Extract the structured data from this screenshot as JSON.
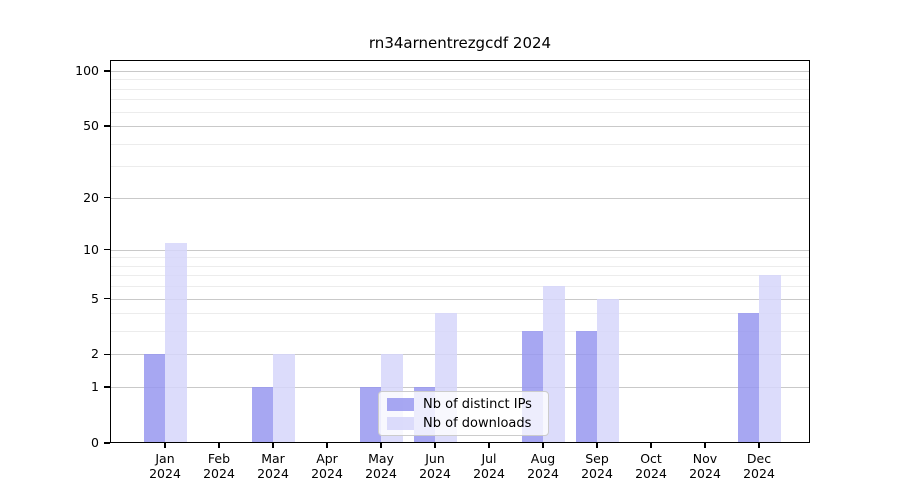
{
  "title": "rn34arnentrezgcdf 2024",
  "legend": {
    "items": [
      {
        "label": "Nb of distinct IPs",
        "color": "rgba(152,152,240,0.85)"
      },
      {
        "label": "Nb of downloads",
        "color": "rgba(214,214,250,0.85)"
      }
    ],
    "position": "lower-center-right"
  },
  "colors": {
    "distinct_ips_bar": "#a7a7f2",
    "downloads_bar": "#dbdbfa",
    "major_gridline": "#c9c9c9",
    "minor_gridline": "#ececec",
    "axis": "#000000",
    "background": "#ffffff"
  },
  "chart_data": {
    "type": "bar",
    "title": "rn34arnentrezgcdf 2024",
    "categories": [
      {
        "month": "Jan",
        "year": "2024"
      },
      {
        "month": "Feb",
        "year": "2024"
      },
      {
        "month": "Mar",
        "year": "2024"
      },
      {
        "month": "Apr",
        "year": "2024"
      },
      {
        "month": "May",
        "year": "2024"
      },
      {
        "month": "Jun",
        "year": "2024"
      },
      {
        "month": "Jul",
        "year": "2024"
      },
      {
        "month": "Aug",
        "year": "2024"
      },
      {
        "month": "Sep",
        "year": "2024"
      },
      {
        "month": "Oct",
        "year": "2024"
      },
      {
        "month": "Nov",
        "year": "2024"
      },
      {
        "month": "Dec",
        "year": "2024"
      }
    ],
    "series": [
      {
        "name": "Nb of distinct IPs",
        "color": "rgba(152,152,240,0.85)",
        "values": [
          2,
          0,
          1,
          0,
          1,
          1,
          0,
          3,
          3,
          0,
          0,
          4
        ]
      },
      {
        "name": "Nb of downloads",
        "color": "rgba(214,214,250,0.85)",
        "values": [
          11,
          0,
          2,
          0,
          2,
          4,
          0,
          6,
          5,
          0,
          0,
          7
        ]
      }
    ],
    "xlabel": "",
    "ylabel": "",
    "y_scale": "log1p",
    "y_ticks": [
      100,
      50,
      20,
      10,
      5,
      2,
      1,
      0
    ],
    "y_minor_gridlines": [
      3,
      4,
      6,
      7,
      8,
      9,
      30,
      40,
      60,
      70,
      80,
      90
    ],
    "ylim": [
      0,
      115
    ],
    "grid": true,
    "legend_position": "lower center"
  }
}
